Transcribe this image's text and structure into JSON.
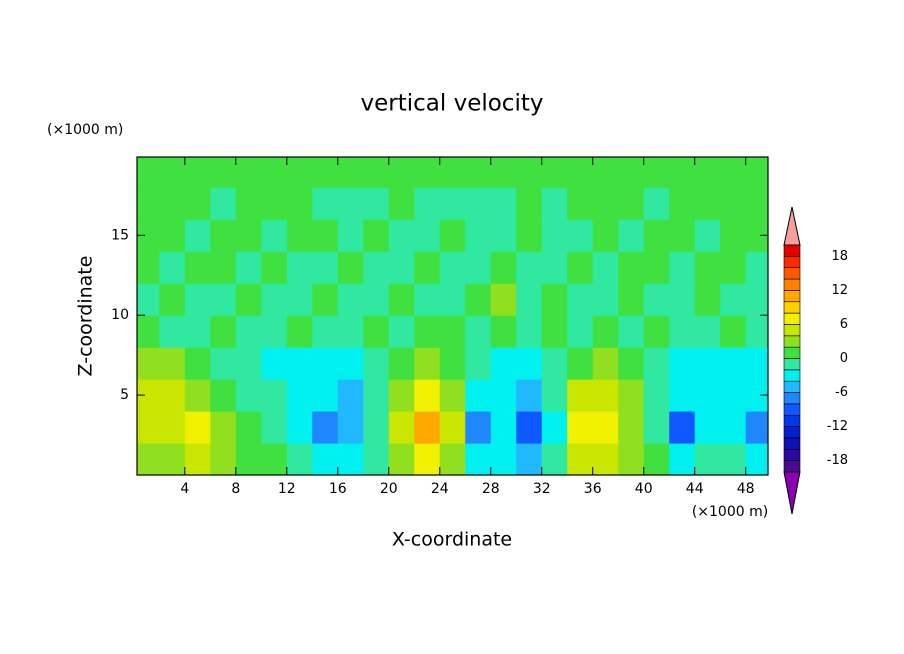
{
  "chart_data": {
    "type": "contour",
    "title": "vertical velocity",
    "x_label": "X-coordinate",
    "y_label": "Z-coordinate",
    "x_unit": "(×1000 m)",
    "y_unit": "(×1000 m)",
    "xlim": [
      0.25,
      49.75
    ],
    "ylim": [
      0,
      19.9
    ],
    "xticks": [
      4,
      8,
      12,
      16,
      20,
      24,
      28,
      32,
      36,
      40,
      44,
      48
    ],
    "yticks": [
      5,
      10,
      15
    ],
    "x": [
      1,
      3,
      5,
      7,
      9,
      11,
      13,
      15,
      17,
      19,
      21,
      23,
      25,
      27,
      29,
      31,
      33,
      35,
      37,
      39,
      41,
      43,
      45,
      47,
      49
    ],
    "y": [
      1,
      3,
      5,
      7,
      9,
      11,
      13,
      15,
      17,
      19
    ],
    "z": [
      [
        3,
        3,
        5,
        3,
        1,
        1,
        -1,
        -3,
        -3,
        -1,
        3,
        7,
        3,
        -3,
        -3,
        -5,
        -1,
        5,
        5,
        3,
        1,
        -3,
        -1,
        -1,
        -3
      ],
      [
        5,
        5,
        7,
        3,
        1,
        -1,
        -3,
        -7,
        -5,
        -1,
        5,
        11,
        5,
        -7,
        -3,
        -9,
        -3,
        7,
        7,
        3,
        -1,
        -9,
        -3,
        -3,
        -7
      ],
      [
        5,
        5,
        3,
        1,
        -1,
        -1,
        -3,
        -3,
        -5,
        -1,
        3,
        7,
        3,
        -3,
        -3,
        -5,
        -1,
        5,
        5,
        3,
        -1,
        -3,
        -3,
        -3,
        -3
      ],
      [
        3,
        3,
        1,
        -1,
        -1,
        -3,
        -3,
        -3,
        -3,
        -1,
        1,
        3,
        1,
        -1,
        -3,
        -3,
        -1,
        1,
        3,
        1,
        -1,
        -3,
        -3,
        -3,
        -3
      ],
      [
        1,
        -1,
        -1,
        1,
        -1,
        -1,
        1,
        -1,
        -1,
        1,
        -1,
        1,
        1,
        -1,
        1,
        -1,
        1,
        -1,
        1,
        -1,
        1,
        -1,
        -1,
        1,
        -1
      ],
      [
        -1,
        1,
        -1,
        -1,
        1,
        -1,
        -1,
        1,
        -1,
        -1,
        1,
        -1,
        -1,
        1,
        3,
        -1,
        1,
        -1,
        -1,
        1,
        -1,
        -1,
        1,
        -1,
        -1
      ],
      [
        1,
        -1,
        1,
        1,
        -1,
        1,
        -1,
        -1,
        1,
        -1,
        -1,
        1,
        -1,
        -1,
        1,
        -1,
        -1,
        1,
        -1,
        1,
        1,
        -1,
        1,
        1,
        -1
      ],
      [
        1,
        1,
        -1,
        1,
        1,
        -1,
        1,
        1,
        -1,
        1,
        -1,
        -1,
        1,
        -1,
        -1,
        1,
        -1,
        -1,
        1,
        -1,
        1,
        1,
        -1,
        1,
        1
      ],
      [
        1,
        1,
        1,
        -1,
        1,
        1,
        1,
        -1,
        -1,
        -1,
        1,
        -1,
        -1,
        -1,
        -1,
        1,
        -1,
        1,
        1,
        1,
        -1,
        1,
        1,
        1,
        1
      ],
      [
        1,
        1,
        1,
        1,
        1,
        1,
        1,
        1,
        1,
        1,
        1,
        1,
        1,
        1,
        1,
        1,
        1,
        1,
        1,
        1,
        1,
        1,
        1,
        1,
        1
      ]
    ],
    "levels": [
      -20,
      -18,
      -16,
      -14,
      -12,
      -10,
      -8,
      -6,
      -4,
      -2,
      0,
      2,
      4,
      6,
      8,
      10,
      12,
      14,
      16,
      18,
      20
    ],
    "colors": [
      "#8a00b0",
      "#4a0a8c",
      "#2a0aa0",
      "#1010b8",
      "#0020d0",
      "#0038e8",
      "#1058ff",
      "#2088ff",
      "#20b8ff",
      "#00f0f0",
      "#30e8a0",
      "#40e040",
      "#90e020",
      "#c8e600",
      "#f0f000",
      "#ffd000",
      "#ffa800",
      "#ff8000",
      "#ff5800",
      "#ff2800",
      "#e00000",
      "#f5a0a0"
    ],
    "cbar_ticks": [
      -18,
      -12,
      -6,
      0,
      6,
      12,
      18
    ]
  }
}
